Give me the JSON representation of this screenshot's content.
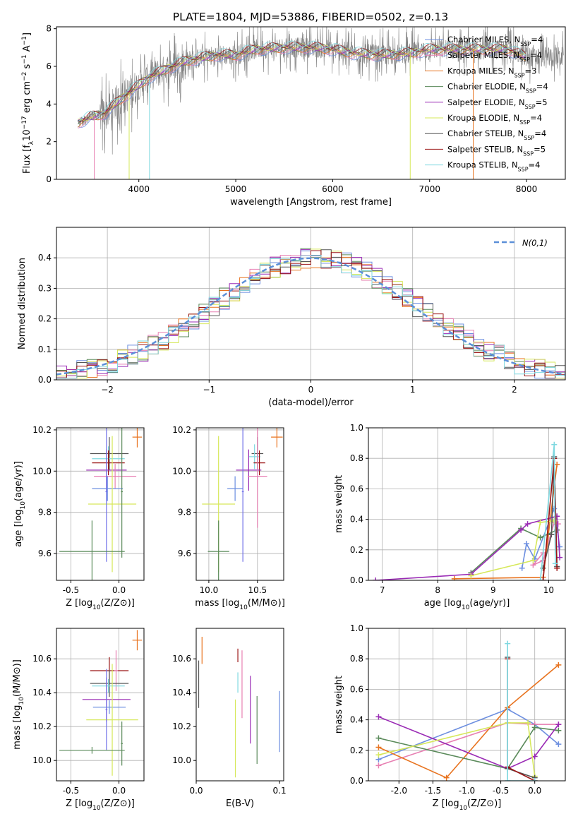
{
  "figure": {
    "title": "PLATE=1804, MJD=53886, FIBERID=0502, z=0.13"
  },
  "colors": {
    "chabrier_miles": "#6d8fe0",
    "salpeter_miles": "#e77fb2",
    "kroupa_miles": "#e8731f",
    "chabrier_elodie": "#5a8a5a",
    "salpeter_elodie": "#9a2bb5",
    "kroupa_elodie": "#d6e85a",
    "chabrier_stelib": "#555555",
    "salpeter_stelib": "#9b1515",
    "kroupa_stelib": "#7fd8e0",
    "extra_blue": "#7070e8",
    "data": "#808080",
    "normal_curve": "#5b8fd8"
  },
  "chart_data": [
    {
      "id": "spectrum",
      "type": "line",
      "xlabel": "wavelength [Angstrom, rest frame]",
      "ylabel": "Flux [f_λ10^-17 erg cm^-2 s^-1 A^-1]",
      "xlim": [
        3150,
        8400
      ],
      "ylim": [
        0,
        8.1
      ],
      "xticks": [
        4000,
        5000,
        6000,
        7000,
        8000
      ],
      "yticks": [
        0,
        2,
        4,
        6,
        8
      ],
      "legend_position": "top-right",
      "observed_trend": {
        "x": [
          3370,
          3500,
          3650,
          3800,
          3950,
          4100,
          4300,
          4500,
          4800,
          5000,
          5200,
          5500,
          5800,
          6000,
          6200,
          6500,
          6800,
          7000,
          7200,
          7500,
          7800,
          8000
        ],
        "y": [
          3.0,
          3.3,
          3.5,
          4.2,
          4.8,
          5.4,
          5.9,
          6.3,
          6.6,
          6.6,
          6.9,
          7.0,
          7.0,
          6.9,
          6.7,
          6.6,
          6.7,
          6.9,
          6.9,
          6.9,
          6.9,
          6.5
        ]
      },
      "series": [
        {
          "name": "Chabrier MILES, N_SSP=4",
          "color_key": "chabrier_miles"
        },
        {
          "name": "Salpeter MILES, N_SSP=4",
          "color_key": "salpeter_miles"
        },
        {
          "name": "Kroupa MILES, N_SSP=3",
          "color_key": "kroupa_miles"
        },
        {
          "name": "Chabrier ELODIE, N_SSP=4",
          "color_key": "chabrier_elodie"
        },
        {
          "name": "Salpeter ELODIE, N_SSP=5",
          "color_key": "salpeter_elodie"
        },
        {
          "name": "Kroupa ELODIE, N_SSP=4",
          "color_key": "kroupa_elodie"
        },
        {
          "name": "Chabrier STELIB, N_SSP=4",
          "color_key": "chabrier_stelib"
        },
        {
          "name": "Salpeter STELIB, N_SSP=5",
          "color_key": "salpeter_stelib"
        },
        {
          "name": "Kroupa STELIB, N_SSP=4",
          "color_key": "kroupa_stelib"
        }
      ]
    },
    {
      "id": "residuals",
      "type": "bar",
      "xlabel": "(data-model)/error",
      "ylabel": "Normed distribution",
      "xlim": [
        -2.5,
        2.5
      ],
      "ylim": [
        0,
        0.5
      ],
      "xticks": [
        -2,
        -1,
        0,
        1,
        2
      ],
      "yticks": [
        0.0,
        0.1,
        0.2,
        0.3,
        0.4
      ],
      "grid": true,
      "legend_position": "top-right",
      "normal_label": "N(0,1)",
      "bin_width": 0.1
    },
    {
      "id": "age_vs_Z",
      "type": "scatter",
      "xlabel": "Z [log10(Z/Z⊙)]",
      "ylabel": "age  [log10(age/yr)]",
      "xlim": [
        -0.65,
        0.26
      ],
      "ylim": [
        9.47,
        10.21
      ],
      "xticks": [
        -0.5,
        0.0
      ],
      "yticks": [
        9.6,
        9.8,
        10.0,
        10.2
      ],
      "grid": true,
      "points": [
        {
          "c": "kroupa_miles",
          "x": 0.19,
          "y": 10.165,
          "dx": 0.05,
          "dy": 0.05
        },
        {
          "c": "chabrier_stelib",
          "x": -0.1,
          "y": 10.085,
          "dx": 0.2,
          "dy": 0.08
        },
        {
          "c": "kroupa_stelib",
          "x": -0.11,
          "y": 10.06,
          "dx": 0.17,
          "dy": 0.06
        },
        {
          "c": "salpeter_stelib",
          "x": -0.11,
          "y": 10.04,
          "dx": 0.17,
          "dy": 0.06
        },
        {
          "c": "salpeter_elodie",
          "x": -0.13,
          "y": 10.005,
          "dx": 0.21,
          "dy": 0.1
        },
        {
          "c": "salpeter_miles",
          "x": -0.04,
          "y": 9.975,
          "dx": 0.22,
          "dy": 0.06
        },
        {
          "c": "chabrier_miles",
          "x": -0.12,
          "y": 9.915,
          "dx": 0.16,
          "dy": 0.06
        },
        {
          "c": "kroupa_elodie",
          "x": -0.07,
          "y": 9.84,
          "dx": 0.25,
          "dy": 0.33
        },
        {
          "c": "extra_blue",
          "x": -0.13,
          "y": 9.9,
          "dx": 0.01,
          "dy": 0.34
        },
        {
          "c": "chabrier_elodie",
          "x": -0.28,
          "y": 9.61,
          "dx": 0.34,
          "dy": 0.15
        },
        {
          "c": "chabrier_elodie",
          "x": 0.03,
          "y": 9.9,
          "dx": 0.01,
          "dy": 0.32
        }
      ]
    },
    {
      "id": "age_vs_mass",
      "type": "scatter",
      "xlabel": "mass [log10(M/M⊙)]",
      "ylabel": "",
      "xlim": [
        9.87,
        10.77
      ],
      "ylim": [
        9.47,
        10.21
      ],
      "xticks": [
        10.0,
        10.5
      ],
      "yticks": [
        9.6,
        9.8,
        10.0,
        10.2
      ],
      "grid": true,
      "points": [
        {
          "c": "kroupa_miles",
          "x": 10.7,
          "y": 10.165,
          "dx": 0.06,
          "dy": 0.05
        },
        {
          "c": "chabrier_stelib",
          "x": 10.5,
          "y": 10.085,
          "dx": 0.06,
          "dy": 0.08
        },
        {
          "c": "kroupa_stelib",
          "x": 10.47,
          "y": 10.07,
          "dx": 0.06,
          "dy": 0.06
        },
        {
          "c": "salpeter_stelib",
          "x": 10.52,
          "y": 10.04,
          "dx": 0.06,
          "dy": 0.06
        },
        {
          "c": "salpeter_elodie",
          "x": 10.41,
          "y": 10.005,
          "dx": 0.13,
          "dy": 0.1
        },
        {
          "c": "salpeter_miles",
          "x": 10.5,
          "y": 9.975,
          "dx": 0.1,
          "dy": 0.25
        },
        {
          "c": "chabrier_miles",
          "x": 10.27,
          "y": 9.915,
          "dx": 0.08,
          "dy": 0.06
        },
        {
          "c": "kroupa_elodie",
          "x": 10.1,
          "y": 9.84,
          "dx": 0.17,
          "dy": 0.33
        },
        {
          "c": "extra_blue",
          "x": 10.35,
          "y": 9.9,
          "dx": 0.01,
          "dy": 0.34
        },
        {
          "c": "chabrier_elodie",
          "x": 10.1,
          "y": 9.61,
          "dx": 0.11,
          "dy": 0.15
        }
      ]
    },
    {
      "id": "weight_vs_age",
      "type": "line",
      "xlabel": "age  [log10(age/yr)]",
      "ylabel": "mass weight",
      "xlim": [
        6.75,
        10.3
      ],
      "ylim": [
        0,
        1.0
      ],
      "xticks": [
        7,
        8,
        9,
        10
      ],
      "yticks": [
        0.0,
        0.2,
        0.4,
        0.6,
        0.8,
        1.0
      ],
      "grid": true,
      "series": [
        {
          "c": "chabrier_miles",
          "x": [
            9.52,
            9.6,
            9.75,
            10.1,
            10.2
          ],
          "y": [
            0.08,
            0.24,
            0.14,
            0.47,
            0.22
          ]
        },
        {
          "c": "salpeter_miles",
          "x": [
            9.9,
            9.72,
            9.9,
            10.1,
            10.17
          ],
          "y": [
            0.18,
            0.1,
            0.13,
            0.38,
            0.37
          ]
        },
        {
          "c": "kroupa_miles",
          "x": [
            8.3,
            9.9,
            10.15
          ],
          "y": [
            0.01,
            0.02,
            0.76
          ]
        },
        {
          "c": "chabrier_elodie",
          "x": [
            8.6,
            9.5,
            9.85,
            10.15
          ],
          "y": [
            0.05,
            0.34,
            0.28,
            0.33
          ]
        },
        {
          "c": "salpeter_elodie",
          "x": [
            6.88,
            8.6,
            9.5,
            9.62,
            10.15,
            10.2
          ],
          "y": [
            0.0,
            0.04,
            0.33,
            0.37,
            0.42,
            0.15
          ]
        },
        {
          "c": "kroupa_elodie",
          "x": [
            8.6,
            9.72,
            9.85,
            10.1
          ],
          "y": [
            0.03,
            0.13,
            0.38,
            0.39
          ]
        },
        {
          "c": "chabrier_stelib",
          "x": [
            9.9,
            10.05,
            10.1,
            10.15
          ],
          "y": [
            0.08,
            0.3,
            0.81,
            0.09
          ]
        },
        {
          "c": "salpeter_stelib",
          "x": [
            9.9,
            10.1,
            10.15
          ],
          "y": [
            0.0,
            0.8,
            0.08
          ]
        },
        {
          "c": "kroupa_stelib",
          "x": [
            9.85,
            10.1,
            10.12
          ],
          "y": [
            0.0,
            0.89,
            0.11
          ]
        }
      ]
    },
    {
      "id": "mass_vs_Z",
      "type": "scatter",
      "xlabel": "Z [log10(Z/Z⊙)]",
      "ylabel": "mass [log10(M/M⊙)]",
      "xlim": [
        -0.65,
        0.26
      ],
      "ylim": [
        9.88,
        10.78
      ],
      "xticks": [
        -0.5,
        0.0
      ],
      "yticks": [
        10.0,
        10.2,
        10.4,
        10.6
      ],
      "grid": true,
      "points": [
        {
          "c": "kroupa_miles",
          "x": 0.19,
          "y": 10.71,
          "dx": 0.05,
          "dy": 0.06
        },
        {
          "c": "salpeter_stelib",
          "x": -0.1,
          "y": 10.53,
          "dx": 0.2,
          "dy": 0.08
        },
        {
          "c": "salpeter_miles",
          "x": -0.03,
          "y": 10.53,
          "dx": 0.02,
          "dy": 0.12
        },
        {
          "c": "chabrier_stelib",
          "x": -0.1,
          "y": 10.455,
          "dx": 0.2,
          "dy": 0.08
        },
        {
          "c": "kroupa_stelib",
          "x": -0.11,
          "y": 10.44,
          "dx": 0.17,
          "dy": 0.04
        },
        {
          "c": "salpeter_elodie",
          "x": -0.13,
          "y": 10.36,
          "dx": 0.25,
          "dy": 0.13
        },
        {
          "c": "chabrier_miles",
          "x": -0.1,
          "y": 10.315,
          "dx": 0.17,
          "dy": 0.04
        },
        {
          "c": "kroupa_elodie",
          "x": -0.07,
          "y": 10.24,
          "dx": 0.27,
          "dy": 0.33
        },
        {
          "c": "extra_blue",
          "x": -0.13,
          "y": 10.3,
          "dx": 0.01,
          "dy": 0.24
        },
        {
          "c": "chabrier_elodie",
          "x": -0.28,
          "y": 10.06,
          "dx": 0.34,
          "dy": 0.02
        },
        {
          "c": "chabrier_elodie",
          "x": 0.03,
          "y": 10.1,
          "dx": 0.01,
          "dy": 0.13
        }
      ]
    },
    {
      "id": "mass_vs_ebv",
      "type": "scatter",
      "xlabel": "E(B-V)",
      "ylabel": "",
      "xlim": [
        0.0,
        0.105
      ],
      "ylim": [
        9.88,
        10.78
      ],
      "xticks": [
        0.0,
        0.1
      ],
      "yticks": [
        10.0,
        10.2,
        10.4,
        10.6
      ],
      "grid": false,
      "points": [
        {
          "c": "kroupa_miles",
          "x": 0.007,
          "y": 10.65,
          "dx": 0,
          "dy": 0.08
        },
        {
          "c": "chabrier_stelib",
          "x": 0.003,
          "y": 10.45,
          "dx": 0,
          "dy": 0.14
        },
        {
          "c": "salpeter_stelib",
          "x": 0.05,
          "y": 10.62,
          "dx": 0,
          "dy": 0.04
        },
        {
          "c": "kroupa_stelib",
          "x": 0.05,
          "y": 10.46,
          "dx": 0,
          "dy": 0.06
        },
        {
          "c": "salpeter_miles",
          "x": 0.055,
          "y": 10.45,
          "dx": 0,
          "dy": 0.2
        },
        {
          "c": "kroupa_elodie",
          "x": 0.047,
          "y": 10.13,
          "dx": 0,
          "dy": 0.23
        },
        {
          "c": "salpeter_elodie",
          "x": 0.065,
          "y": 10.3,
          "dx": 0,
          "dy": 0.2
        },
        {
          "c": "chabrier_elodie",
          "x": 0.073,
          "y": 10.18,
          "dx": 0,
          "dy": 0.2
        },
        {
          "c": "chabrier_miles",
          "x": 0.1,
          "y": 10.23,
          "dx": 0,
          "dy": 0.18
        }
      ]
    },
    {
      "id": "weight_vs_Z",
      "type": "line",
      "xlabel": "Z [log10(Z/Z⊙)]",
      "ylabel": "mass weight",
      "xlim": [
        -2.45,
        0.45
      ],
      "ylim": [
        0,
        1.0
      ],
      "xticks": [
        -2.0,
        -1.5,
        -1.0,
        -0.5,
        0.0
      ],
      "yticks": [
        0.0,
        0.2,
        0.4,
        0.6,
        0.8,
        1.0
      ],
      "grid": true,
      "series": [
        {
          "c": "chabrier_miles",
          "x": [
            -2.3,
            -0.4,
            0.0,
            0.35
          ],
          "y": [
            0.14,
            0.47,
            0.37,
            0.24
          ]
        },
        {
          "c": "salpeter_miles",
          "x": [
            -2.3,
            -0.4,
            0.0,
            0.35
          ],
          "y": [
            0.1,
            0.38,
            0.37,
            0.37
          ]
        },
        {
          "c": "kroupa_miles",
          "x": [
            -2.3,
            -1.3,
            -0.4,
            0.35
          ],
          "y": [
            0.22,
            0.02,
            0.48,
            0.76
          ]
        },
        {
          "c": "chabrier_elodie",
          "x": [
            -2.3,
            -0.4,
            0.0,
            0.35
          ],
          "y": [
            0.28,
            0.08,
            0.35,
            0.33
          ]
        },
        {
          "c": "salpeter_elodie",
          "x": [
            -2.3,
            -0.4,
            0.0,
            0.35
          ],
          "y": [
            0.42,
            0.08,
            0.16,
            0.37
          ]
        },
        {
          "c": "kroupa_elodie",
          "x": [
            -2.3,
            -0.4,
            -0.1,
            0.0
          ],
          "y": [
            0.17,
            0.38,
            0.38,
            0.03
          ]
        },
        {
          "c": "chabrier_stelib",
          "x": [
            -0.4,
            -0.4,
            0.0
          ],
          "y": [
            0.81,
            0.08,
            0.02
          ]
        },
        {
          "c": "salpeter_stelib",
          "x": [
            -0.4,
            -0.4,
            0.0
          ],
          "y": [
            0.8,
            0.09,
            0.0
          ]
        },
        {
          "c": "kroupa_stelib",
          "x": [
            -0.4,
            -0.4,
            0.0
          ],
          "y": [
            0.9,
            0.0,
            0.0
          ]
        }
      ]
    }
  ]
}
